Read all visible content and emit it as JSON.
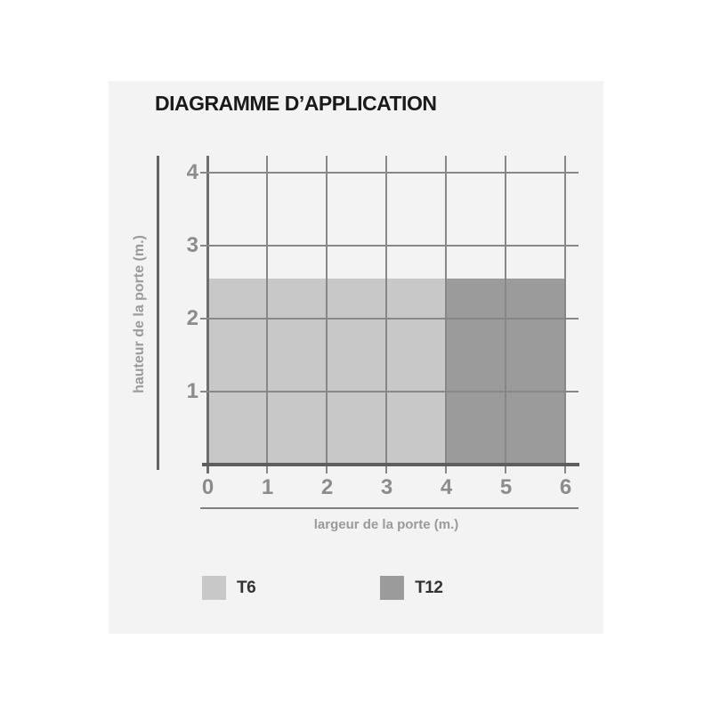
{
  "title": "DIAGRAMME D’APPLICATION",
  "chart_data": {
    "type": "area",
    "title": "DIAGRAMME D’APPLICATION",
    "xlabel": "largeur de la porte (m.)",
    "ylabel": "hauteur de la porte (m.)",
    "xlim": [
      0,
      6
    ],
    "ylim": [
      0,
      4.3
    ],
    "x_ticks": [
      0,
      1,
      2,
      3,
      4,
      5,
      6
    ],
    "y_ticks": [
      1,
      2,
      3,
      4
    ],
    "grid": true,
    "legend_position": "bottom",
    "series": [
      {
        "name": "T6",
        "color": "#c8c8c8",
        "x_range": [
          0,
          4
        ],
        "y_range": [
          0,
          2.55
        ]
      },
      {
        "name": "T12",
        "color": "#9b9b9b",
        "x_range": [
          4,
          6
        ],
        "y_range": [
          0,
          2.55
        ]
      }
    ]
  },
  "legend": {
    "items": [
      {
        "label": "T6",
        "color": "#c8c8c8"
      },
      {
        "label": "T12",
        "color": "#9b9b9b"
      }
    ]
  },
  "colors": {
    "page_background": "#ffffff",
    "panel_background": "#f3f3f3",
    "gridline": "#878787",
    "axis_line": "#5e5e5e",
    "tick_label": "#8c8c8c",
    "axis_title": "#9a9a9a",
    "title_text": "#1a1a1a",
    "legend_text": "#333333",
    "t6_fill": "#c8c8c8",
    "t12_fill": "#9b9b9b"
  }
}
